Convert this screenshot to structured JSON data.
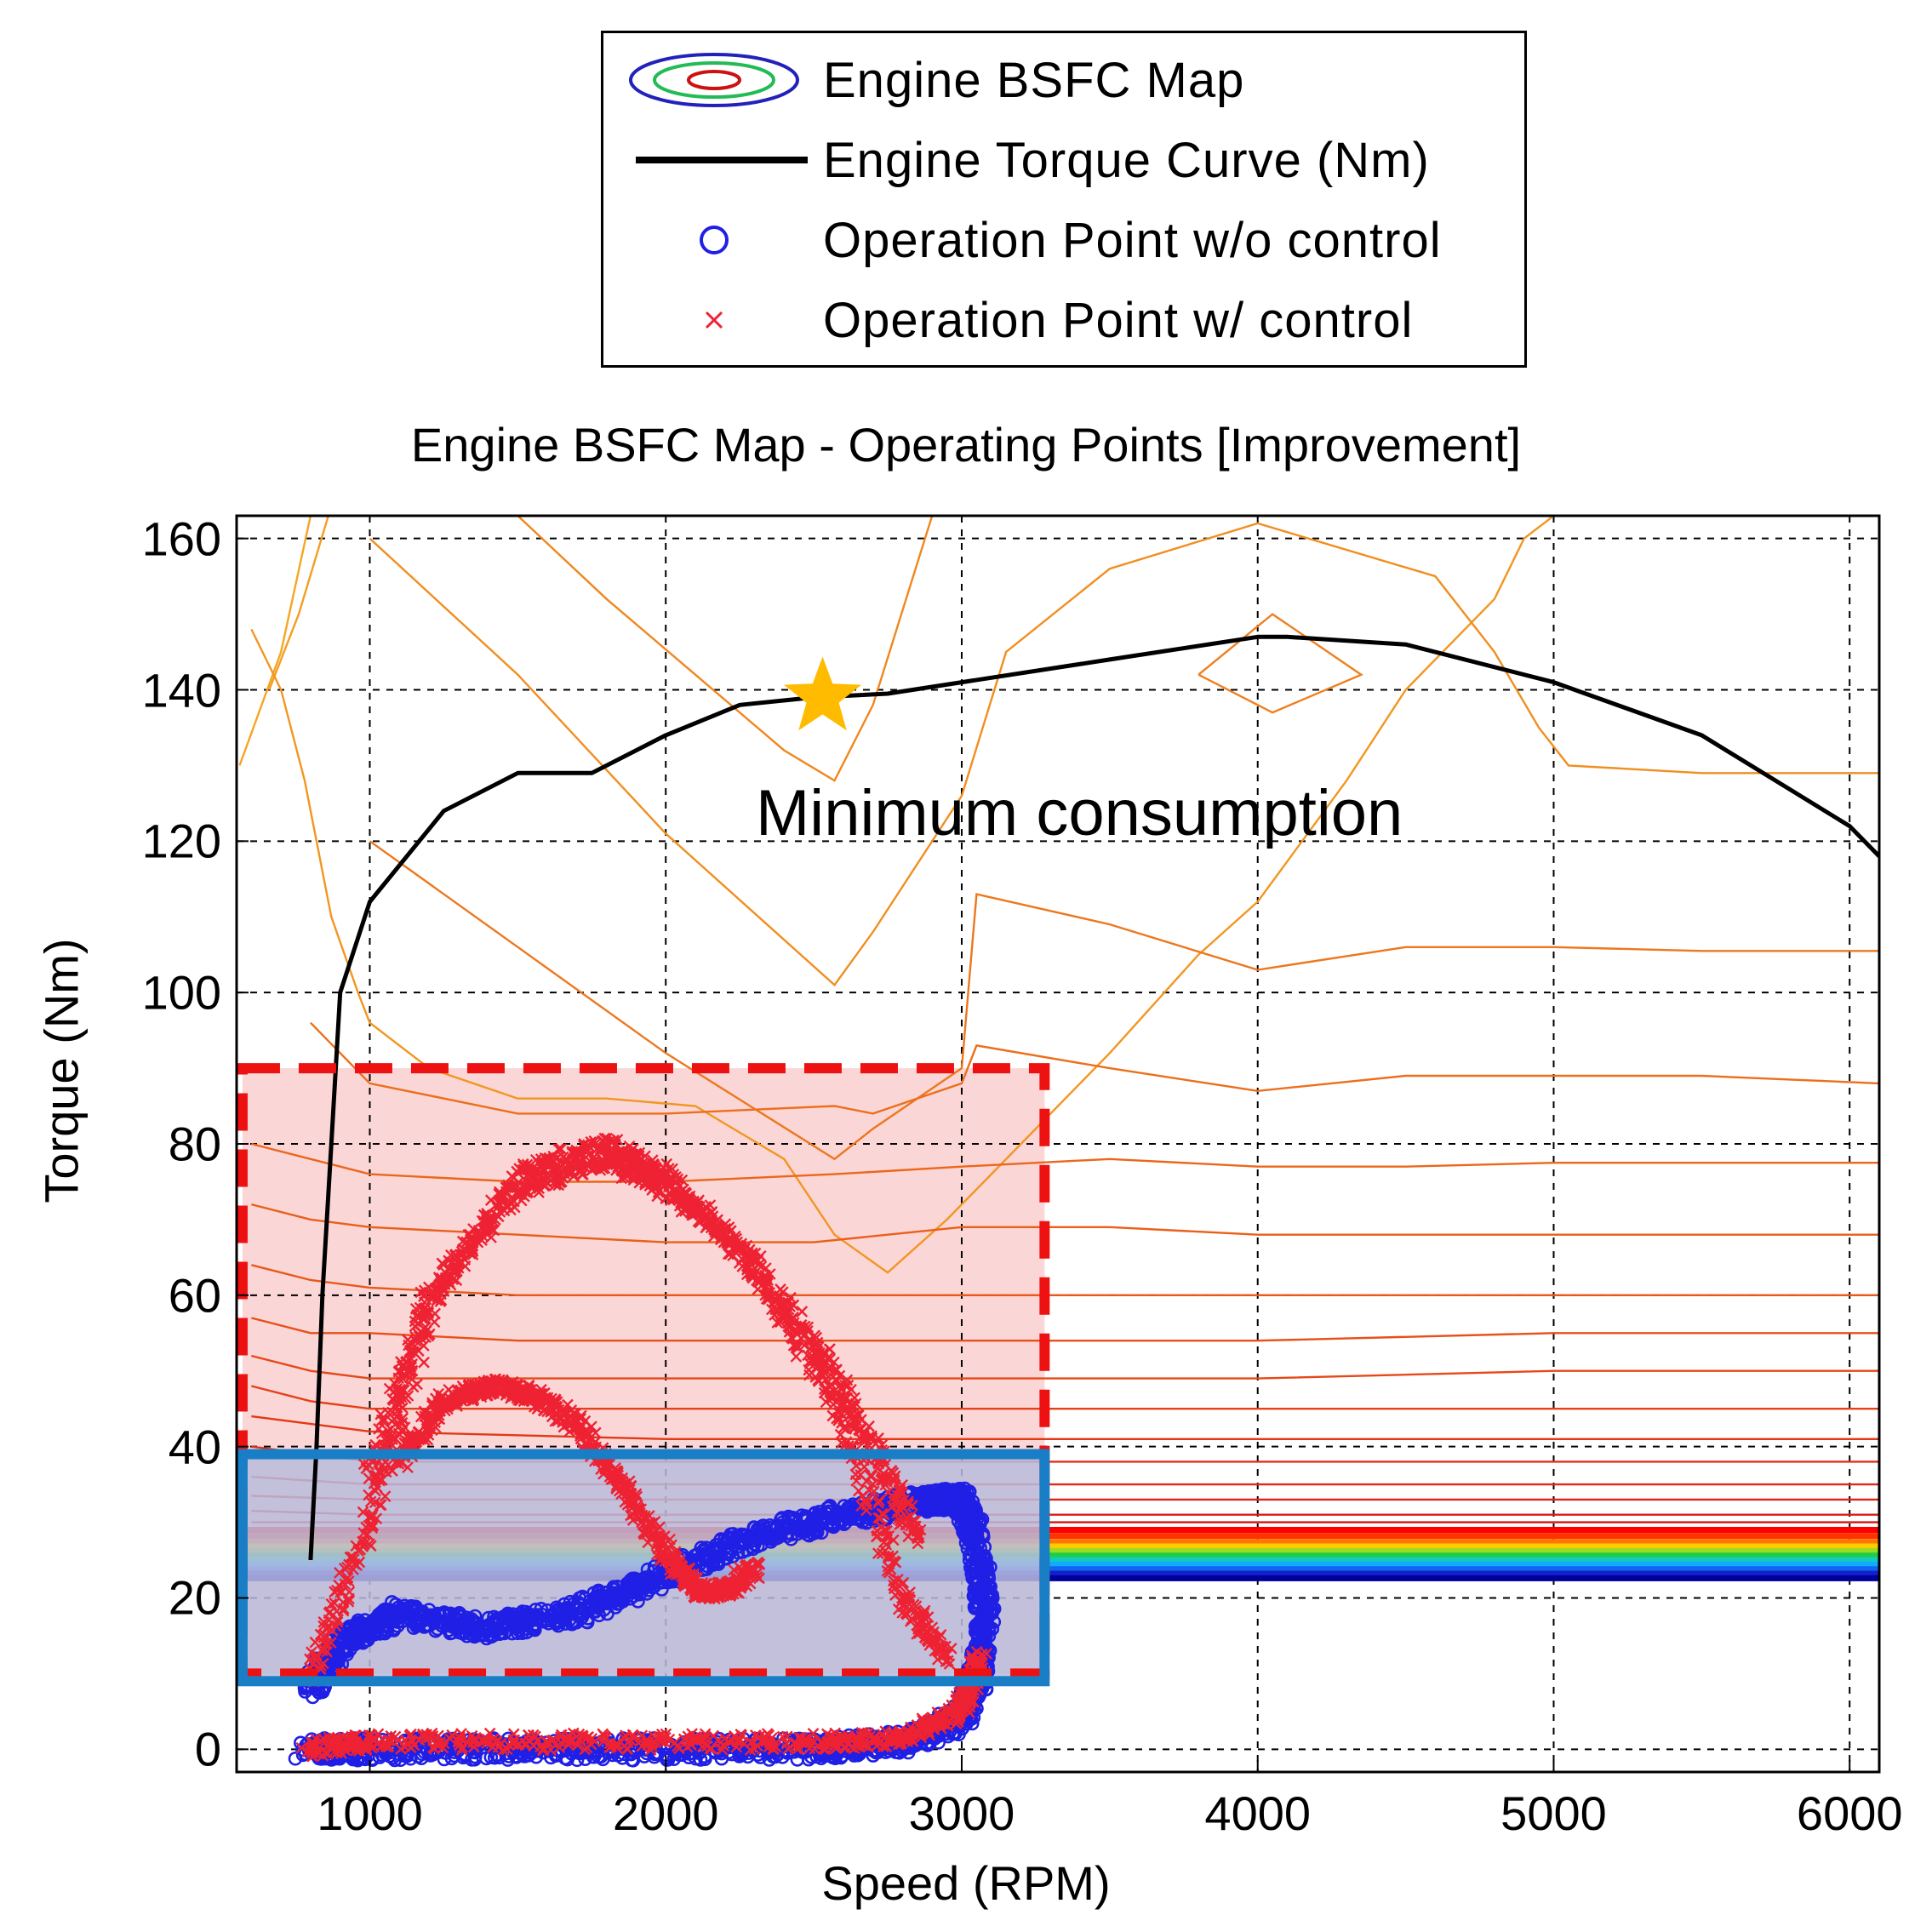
{
  "legend": {
    "items": [
      {
        "label": "Engine BSFC Map",
        "icon": "contour-ellipses-icon"
      },
      {
        "label": "Engine Torque Curve (Nm)",
        "icon": "black-line-icon"
      },
      {
        "label": "Operation Point w/o control",
        "icon": "blue-circle-marker-icon"
      },
      {
        "label": "Operation Point w/ control",
        "icon": "red-x-marker-icon"
      }
    ]
  },
  "annotation": "Minimum consumption",
  "colors": {
    "torque_curve": "#000000",
    "points_without_control": "#1f1fe6",
    "points_with_control": "#ee2233",
    "red_region_fill": "#fbd6d6",
    "red_region_border": "#ee1111",
    "blue_region_fill": "#b8bcdd",
    "blue_region_border": "#1a7ec6",
    "star": "#ffbb00",
    "contour_high": "#f5a623",
    "contour_low": "#dd1111"
  },
  "chart_data": {
    "type": "line",
    "title": "Engine BSFC Map - Operating Points [Improvement]",
    "xlabel": "Speed (RPM)",
    "ylabel": "Torque (Nm)",
    "xlim": [
      550,
      6100
    ],
    "ylim": [
      -3,
      163
    ],
    "x_ticks": [
      1000,
      2000,
      3000,
      4000,
      5000,
      6000
    ],
    "y_ticks": [
      0,
      20,
      40,
      60,
      80,
      100,
      120,
      140,
      160
    ],
    "grid": true,
    "grid_style": "dashed",
    "legend_position": "top-center, above title",
    "series": [
      {
        "name": "Engine Torque Curve (Nm)",
        "kind": "line",
        "x": [
          800,
          820,
          840,
          870,
          900,
          1000,
          1250,
          1500,
          1750,
          2000,
          2250,
          2500,
          2750,
          3000,
          3500,
          4000,
          4100,
          4500,
          5000,
          5500,
          6000,
          6100
        ],
        "y": [
          25,
          40,
          60,
          80,
          100,
          112,
          124,
          129,
          129,
          134,
          138,
          139,
          139.5,
          141,
          144,
          147,
          147,
          146,
          141,
          134,
          122,
          118
        ]
      },
      {
        "name": "Operation Point w/o control",
        "kind": "scatter-band",
        "bands": [
          {
            "x": [
              780,
              1000,
              1500,
              2000,
              2500,
              2800,
              3000,
              3050
            ],
            "y": [
              0,
              0,
              0,
              0,
              0,
              1,
              4,
              10
            ]
          },
          {
            "x": [
              800,
              900,
              1100,
              1400,
              1700,
              2000,
              2300,
              2600,
              2900,
              3000
            ],
            "y": [
              8,
              14,
              18,
              16,
              18,
              23,
              28,
              31,
              33,
              33
            ]
          },
          {
            "x": [
              3000,
              3050,
              3080,
              3050
            ],
            "y": [
              33,
              28,
              18,
              8
            ]
          }
        ]
      },
      {
        "name": "Operation Point w/ control",
        "kind": "scatter-band",
        "bands": [
          {
            "x": [
              790,
              1000,
              1500,
              2000,
              2500,
              2800,
              3000,
              3060
            ],
            "y": [
              0,
              1,
              1,
              1,
              1,
              1.5,
              5,
              12
            ]
          },
          {
            "x": [
              800,
              1000,
              1200,
              1500,
              1800,
              2000,
              2300,
              2600,
              2800,
              2950
            ],
            "y": [
              10,
              30,
              58,
              76,
              80,
              76,
              64,
              44,
              20,
              12
            ]
          },
          {
            "x": [
              1000,
              1200,
              1500,
              1800,
              2000,
              2200,
              2500,
              2700,
              2850
            ],
            "y": [
              36,
              60,
              74,
              78,
              74,
              68,
              54,
              40,
              28
            ]
          },
          {
            "x": [
              1100,
              1250,
              1400,
              1550,
              1700,
              1850,
              2000,
              2100,
              2200,
              2300
            ],
            "y": [
              38,
              46,
              48,
              47,
              43,
              35,
              26,
              21,
              21,
              24
            ]
          }
        ]
      }
    ],
    "contours": [
      {
        "x": [
          560,
          700,
          800
        ],
        "y": [
          130,
          145,
          163
        ]
      },
      {
        "x": [
          660,
          760,
          860
        ],
        "y": [
          140,
          150,
          163
        ]
      },
      {
        "x": [
          600,
          700,
          780,
          870,
          960,
          1000,
          1200,
          1500,
          1800,
          2100,
          2400,
          2570,
          2750,
          2950,
          3100,
          3500,
          3800,
          4000,
          4300,
          4500,
          4800,
          4900,
          5000,
          5100,
          5500,
          6100
        ],
        "y": [
          148,
          140,
          128,
          110,
          100,
          96,
          90,
          86,
          86,
          85,
          78,
          68,
          63,
          70,
          76,
          92,
          105,
          112,
          128,
          140,
          152,
          160,
          163,
          163,
          163,
          163
        ]
      },
      {
        "x": [
          1000,
          1500,
          2000,
          2570,
          2700,
          3000,
          3150,
          3500,
          4000,
          4600,
          4800,
          4950,
          5050,
          5500,
          6100
        ],
        "y": [
          160,
          142,
          121,
          101,
          108,
          126,
          145,
          156,
          162,
          155,
          145,
          135,
          130,
          129,
          129
        ]
      },
      {
        "x": [
          1500,
          1800,
          2100,
          2400,
          2570,
          2700,
          2900
        ],
        "y": [
          163,
          152,
          142,
          132,
          128,
          138,
          163
        ]
      },
      {
        "x": [
          3800,
          4050,
          4350,
          4050,
          3800
        ],
        "y": [
          142,
          150,
          142,
          137,
          142
        ]
      },
      {
        "x": [
          1000,
          1500,
          2000,
          2570,
          2700,
          3000,
          3050,
          3500,
          4000,
          4500,
          5000,
          5500,
          6100
        ],
        "y": [
          120,
          106,
          92,
          78,
          82,
          90,
          113,
          109,
          103,
          106,
          106,
          105.5,
          105.5
        ]
      },
      {
        "x": [
          800,
          1000,
          1500,
          2000,
          2570,
          2700,
          3000,
          3050,
          3500,
          4000,
          4500,
          5000,
          5500,
          6100
        ],
        "y": [
          96,
          88,
          84,
          84,
          85,
          84,
          88,
          93,
          90,
          87,
          89,
          89,
          89,
          88
        ]
      },
      {
        "x": [
          600,
          800,
          1000,
          1500,
          2000,
          2570,
          3000,
          3500,
          4000,
          4500,
          5000,
          6100
        ],
        "y": [
          80,
          78,
          76,
          75,
          75,
          76,
          77,
          78,
          77,
          77,
          77.5,
          77.5
        ]
      },
      {
        "x": [
          600,
          800,
          1000,
          1500,
          2000,
          2500,
          3000,
          3500,
          4000,
          5000,
          6100
        ],
        "y": [
          72,
          70,
          69,
          68,
          67,
          67,
          69,
          69,
          68,
          68,
          68
        ]
      },
      {
        "x": [
          600,
          800,
          1000,
          1500,
          2000,
          2500,
          3000,
          3500,
          4000,
          5000,
          6100
        ],
        "y": [
          64,
          62,
          61,
          60,
          60,
          60,
          60,
          60,
          60,
          60,
          60
        ]
      },
      {
        "x": [
          600,
          800,
          1000,
          1500,
          2000,
          2500,
          3000,
          3500,
          4000,
          5000,
          6100
        ],
        "y": [
          57,
          55,
          55,
          54,
          54,
          54,
          54,
          54,
          54,
          55,
          55
        ]
      },
      {
        "x": [
          600,
          800,
          1000,
          1500,
          2000,
          2500,
          3000,
          4000,
          5000,
          6100
        ],
        "y": [
          52,
          50,
          49,
          49,
          49,
          49,
          49,
          49,
          50,
          50
        ]
      },
      {
        "x": [
          600,
          800,
          1000,
          1500,
          2000,
          3000,
          4000,
          6100
        ],
        "y": [
          48,
          46,
          45,
          45,
          45,
          45,
          45,
          45
        ]
      },
      {
        "x": [
          600,
          1000,
          2000,
          3000,
          4000,
          6100
        ],
        "y": [
          44,
          42,
          41,
          41,
          41,
          41
        ]
      },
      {
        "x": [
          600,
          1000,
          2000,
          3000,
          4000,
          6100
        ],
        "y": [
          40,
          38,
          38,
          38,
          38,
          38
        ]
      },
      {
        "x": [
          600,
          1000,
          2000,
          3000,
          6100
        ],
        "y": [
          36,
          35,
          35,
          35,
          35
        ]
      },
      {
        "x": [
          600,
          1000,
          2000,
          3000,
          6100
        ],
        "y": [
          33.5,
          33,
          33,
          33,
          33
        ]
      },
      {
        "x": [
          600,
          1000,
          2000,
          3000,
          6100
        ],
        "y": [
          31.5,
          31,
          31,
          31,
          31
        ]
      },
      {
        "x": [
          600,
          6100
        ],
        "y": [
          30,
          30
        ]
      }
    ],
    "bands": [
      {
        "y": 29,
        "color": "#ff0000"
      },
      {
        "y": 28.2,
        "color": "#ff3300"
      },
      {
        "y": 27.4,
        "color": "#ff7700"
      },
      {
        "y": 26.8,
        "color": "#ffcc00"
      },
      {
        "y": 26.2,
        "color": "#99dd22"
      },
      {
        "y": 25.6,
        "color": "#22cc44"
      },
      {
        "y": 25.0,
        "color": "#11ccbb"
      },
      {
        "y": 24.4,
        "color": "#11aaff"
      },
      {
        "y": 23.8,
        "color": "#1166ee"
      },
      {
        "y": 23.2,
        "color": "#1122cc"
      },
      {
        "y": 22.6,
        "color": "#000099"
      }
    ],
    "regions": [
      {
        "kind": "red-dashed",
        "x": [
          570,
          3280
        ],
        "y": [
          10,
          90
        ]
      },
      {
        "kind": "blue-solid",
        "x": [
          570,
          3280
        ],
        "y": [
          9,
          39
        ]
      }
    ],
    "star": {
      "x": 2530,
      "y": 139
    }
  }
}
